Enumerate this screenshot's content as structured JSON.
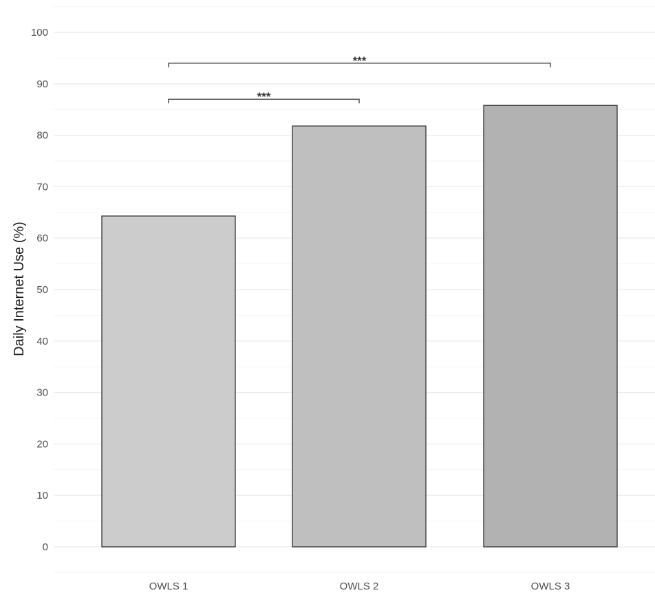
{
  "chart_data": {
    "type": "bar",
    "ylabel": "Daily Internet Use (%)",
    "categories": [
      "OWLS 1",
      "OWLS 2",
      "OWLS 3"
    ],
    "values": [
      64.3,
      81.8,
      85.8
    ],
    "bar_colors": [
      "#cccccc",
      "#bfbfbf",
      "#b2b2b2"
    ],
    "ylim": [
      -5,
      105
    ],
    "yticks": [
      0,
      10,
      20,
      30,
      40,
      50,
      60,
      70,
      80,
      90,
      100
    ],
    "grid": true,
    "significance": [
      {
        "from": "OWLS 1",
        "to": "OWLS 2",
        "label": "***",
        "y": 87
      },
      {
        "from": "OWLS 1",
        "to": "OWLS 3",
        "label": "***",
        "y": 94
      }
    ]
  }
}
